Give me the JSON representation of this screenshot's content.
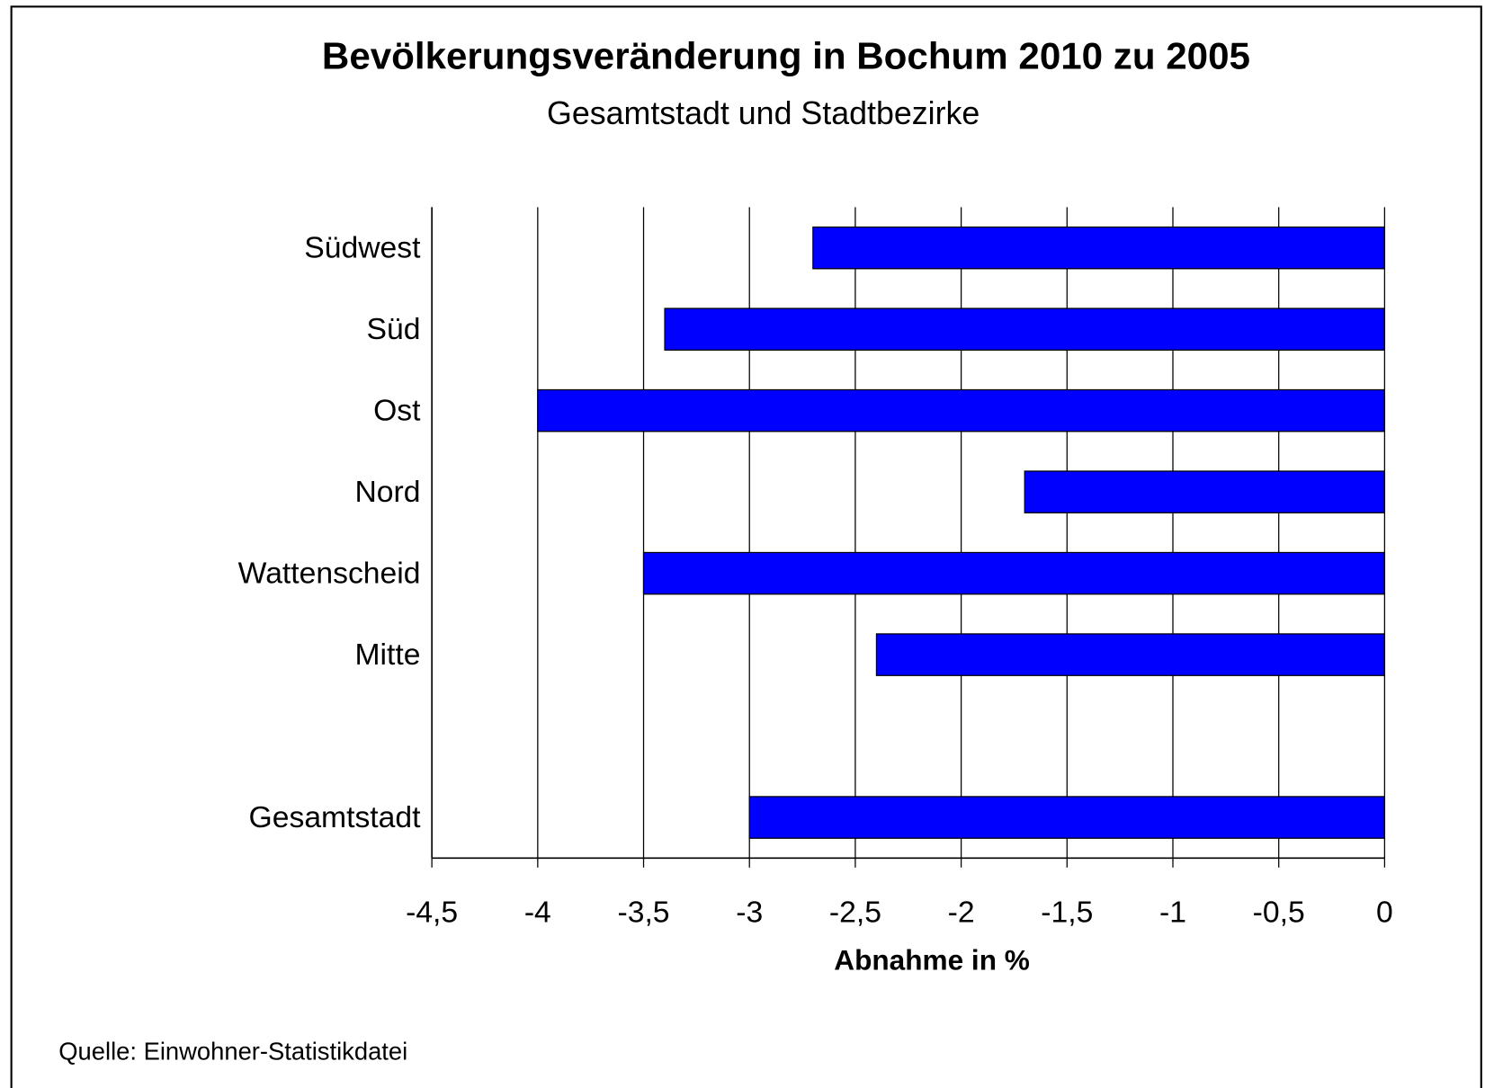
{
  "chart_data": {
    "type": "barh",
    "title": "Bevölkerungsveränderung in Bochum 2010 zu 2005",
    "subtitle": "Gesamtstadt und Stadtbezirke",
    "categories": [
      "Südwest",
      "Süd",
      "Ost",
      "Nord",
      "Wattenscheid",
      "Mitte",
      null,
      "Gesamtstadt"
    ],
    "values": [
      -2.7,
      -3.4,
      -4,
      -1.7,
      -3.5,
      -2.4,
      null,
      -3
    ],
    "color": "#0000ff",
    "xlabel": "Abnahme in %",
    "xlim": [
      -4.5,
      0
    ],
    "xticks": [
      {
        "value": -4.5,
        "label": "-4,5"
      },
      -4,
      {
        "value": -3.5,
        "label": "-3,5"
      },
      -3,
      {
        "value": -2.5,
        "label": "-2,5"
      },
      -2,
      {
        "value": -1.5,
        "label": "-1,5"
      },
      -1,
      {
        "value": -0.5,
        "label": "-0,5"
      },
      0
    ],
    "grid": true,
    "source": "Quelle: Einwohner-Statistikdatei"
  }
}
